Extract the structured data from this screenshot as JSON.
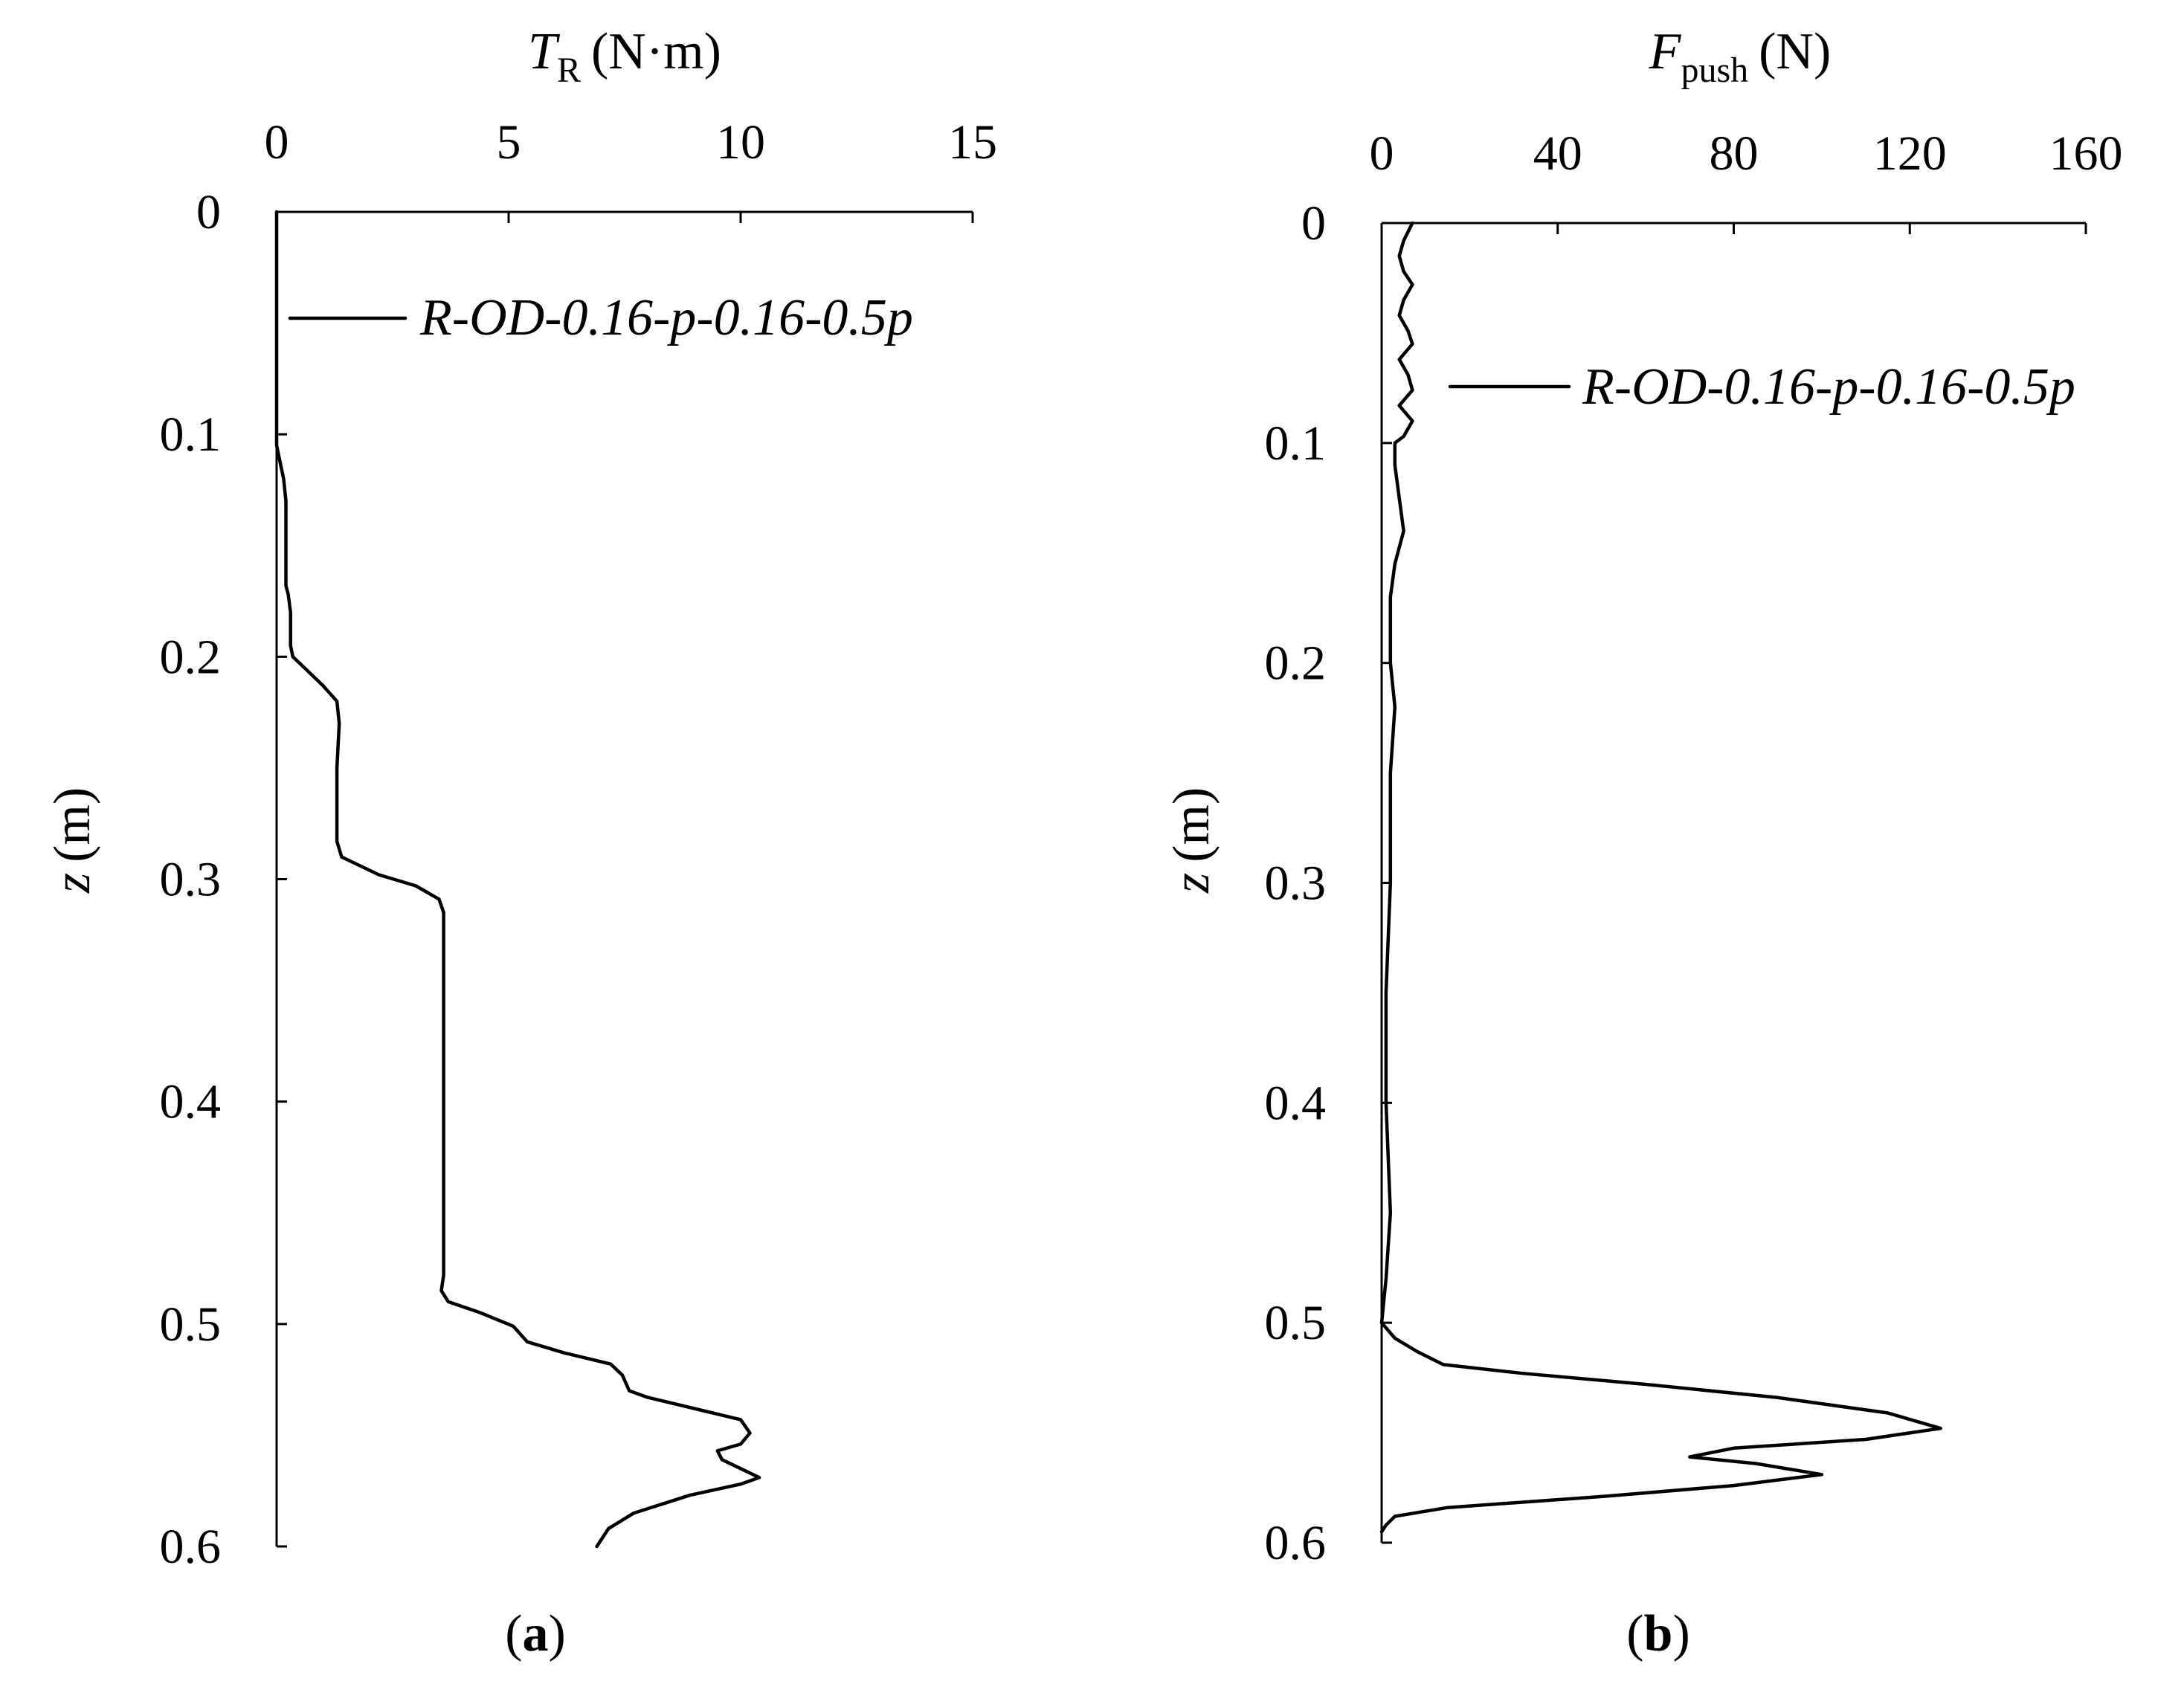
{
  "chart_data": [
    {
      "id": "a",
      "type": "line",
      "orientation": "depth-profile (x on top axis, y increasing downward)",
      "panel_label": "a",
      "xlabel": {
        "symbol": "T",
        "subscript": "R",
        "unit": "(N·m)"
      },
      "ylabel": {
        "symbol": "z",
        "unit": "(m)"
      },
      "xlim": [
        0,
        15
      ],
      "ylim": [
        0,
        0.6
      ],
      "xticks": [
        0,
        5,
        10,
        15
      ],
      "xtick_labels": [
        "0",
        "5",
        "10",
        "15"
      ],
      "yticks": [
        0,
        0.1,
        0.2,
        0.3,
        0.4,
        0.5,
        0.6
      ],
      "ytick_labels": [
        "0",
        "0.1",
        "0.2",
        "0.3",
        "0.4",
        "0.5",
        "0.6"
      ],
      "grid": false,
      "legend_position": "top-right",
      "series": [
        {
          "name": "R-OD-0.16-p-0.16-0.5p",
          "points": [
            [
              0,
              0
            ],
            [
              0,
              0.05
            ],
            [
              0,
              0.105
            ],
            [
              0.05,
              0.11
            ],
            [
              0.1,
              0.115
            ],
            [
              0.15,
              0.12
            ],
            [
              0.2,
              0.13
            ],
            [
              0.2,
              0.15
            ],
            [
              0.2,
              0.168
            ],
            [
              0.25,
              0.172
            ],
            [
              0.3,
              0.18
            ],
            [
              0.3,
              0.195
            ],
            [
              0.35,
              0.2
            ],
            [
              0.7,
              0.207
            ],
            [
              1.0,
              0.213
            ],
            [
              1.3,
              0.22
            ],
            [
              1.35,
              0.23
            ],
            [
              1.3,
              0.25
            ],
            [
              1.3,
              0.27
            ],
            [
              1.3,
              0.283
            ],
            [
              1.4,
              0.29
            ],
            [
              2.2,
              0.298
            ],
            [
              3.0,
              0.303
            ],
            [
              3.5,
              0.309
            ],
            [
              3.6,
              0.315
            ],
            [
              3.6,
              0.33
            ],
            [
              3.6,
              0.38
            ],
            [
              3.6,
              0.43
            ],
            [
              3.6,
              0.478
            ],
            [
              3.55,
              0.485
            ],
            [
              3.7,
              0.49
            ],
            [
              4.4,
              0.495
            ],
            [
              5.1,
              0.501
            ],
            [
              5.4,
              0.508
            ],
            [
              6.2,
              0.513
            ],
            [
              7.2,
              0.518
            ],
            [
              7.45,
              0.523
            ],
            [
              7.6,
              0.53
            ],
            [
              8.0,
              0.533
            ],
            [
              9.0,
              0.538
            ],
            [
              10.0,
              0.543
            ],
            [
              10.2,
              0.549
            ],
            [
              10.0,
              0.554
            ],
            [
              9.5,
              0.557
            ],
            [
              9.6,
              0.561
            ],
            [
              10.0,
              0.565
            ],
            [
              10.4,
              0.569
            ],
            [
              10.0,
              0.572
            ],
            [
              8.9,
              0.577
            ],
            [
              7.7,
              0.585
            ],
            [
              7.15,
              0.592
            ],
            [
              6.9,
              0.6
            ]
          ]
        }
      ]
    },
    {
      "id": "b",
      "type": "line",
      "orientation": "depth-profile (x on top axis, y increasing downward)",
      "panel_label": "b",
      "xlabel": {
        "symbol": "F",
        "subscript": "push",
        "unit": "(N)"
      },
      "ylabel": {
        "symbol": "z",
        "unit": "(m)"
      },
      "xlim": [
        0,
        160
      ],
      "ylim": [
        0,
        0.6
      ],
      "xticks": [
        0,
        40,
        80,
        120,
        160
      ],
      "xtick_labels": [
        "0",
        "40",
        "80",
        "120",
        "160"
      ],
      "yticks": [
        0,
        0.1,
        0.2,
        0.3,
        0.4,
        0.5,
        0.6
      ],
      "ytick_labels": [
        "0",
        "0.1",
        "0.2",
        "0.3",
        "0.4",
        "0.5",
        "0.6"
      ],
      "grid": false,
      "legend_position": "top-right",
      "series": [
        {
          "name": "R-OD-0.16-p-0.16-0.5p",
          "points": [
            [
              7,
              0
            ],
            [
              5,
              0.008
            ],
            [
              4,
              0.015
            ],
            [
              5,
              0.022
            ],
            [
              7,
              0.028
            ],
            [
              5,
              0.035
            ],
            [
              4,
              0.042
            ],
            [
              6,
              0.049
            ],
            [
              7,
              0.055
            ],
            [
              4,
              0.062
            ],
            [
              6,
              0.069
            ],
            [
              7,
              0.076
            ],
            [
              4,
              0.083
            ],
            [
              7,
              0.09
            ],
            [
              5,
              0.097
            ],
            [
              3,
              0.1
            ],
            [
              3,
              0.11
            ],
            [
              4,
              0.125
            ],
            [
              5,
              0.14
            ],
            [
              3,
              0.155
            ],
            [
              2,
              0.17
            ],
            [
              2,
              0.2
            ],
            [
              3,
              0.22
            ],
            [
              2,
              0.25
            ],
            [
              2,
              0.3
            ],
            [
              1,
              0.35
            ],
            [
              1,
              0.4
            ],
            [
              2,
              0.45
            ],
            [
              1,
              0.48
            ],
            [
              0,
              0.5
            ],
            [
              3,
              0.507
            ],
            [
              8,
              0.513
            ],
            [
              14,
              0.519
            ],
            [
              32,
              0.523
            ],
            [
              60,
              0.528
            ],
            [
              90,
              0.534
            ],
            [
              115,
              0.541
            ],
            [
              127,
              0.548
            ],
            [
              110,
              0.553
            ],
            [
              80,
              0.557
            ],
            [
              70,
              0.561
            ],
            [
              85,
              0.564
            ],
            [
              100,
              0.569
            ],
            [
              80,
              0.574
            ],
            [
              50,
              0.579
            ],
            [
              15,
              0.584
            ],
            [
              3,
              0.588
            ],
            [
              1,
              0.592
            ],
            [
              0,
              0.595
            ]
          ]
        }
      ]
    }
  ]
}
